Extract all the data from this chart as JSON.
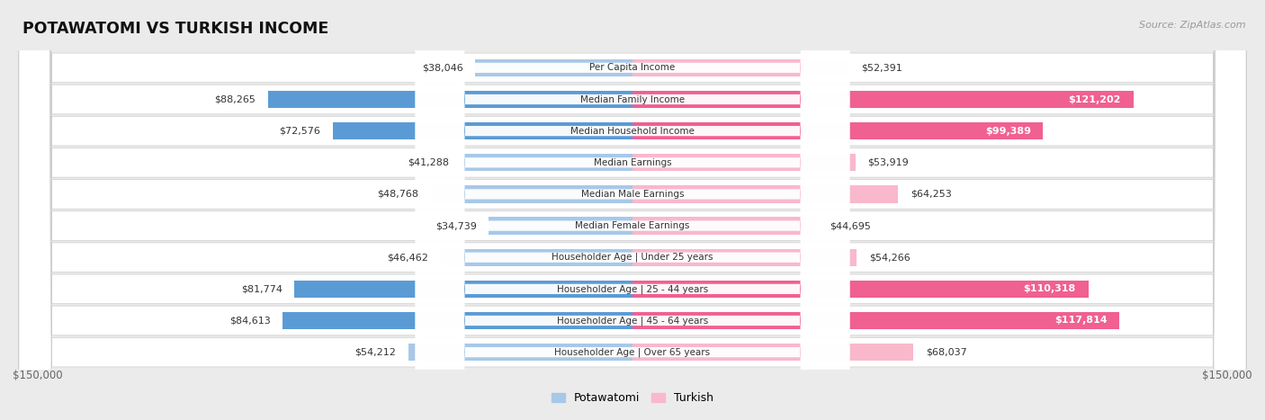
{
  "title": "POTAWATOMI VS TURKISH INCOME",
  "source": "Source: ZipAtlas.com",
  "categories": [
    "Per Capita Income",
    "Median Family Income",
    "Median Household Income",
    "Median Earnings",
    "Median Male Earnings",
    "Median Female Earnings",
    "Householder Age | Under 25 years",
    "Householder Age | 25 - 44 years",
    "Householder Age | 45 - 64 years",
    "Householder Age | Over 65 years"
  ],
  "potawatomi_values": [
    38046,
    88265,
    72576,
    41288,
    48768,
    34739,
    46462,
    81774,
    84613,
    54212
  ],
  "turkish_values": [
    52391,
    121202,
    99389,
    53919,
    64253,
    44695,
    54266,
    110318,
    117814,
    68037
  ],
  "potawatomi_labels": [
    "$38,046",
    "$88,265",
    "$72,576",
    "$41,288",
    "$48,768",
    "$34,739",
    "$46,462",
    "$81,774",
    "$84,613",
    "$54,212"
  ],
  "turkish_labels": [
    "$52,391",
    "$121,202",
    "$99,389",
    "$53,919",
    "$64,253",
    "$44,695",
    "$54,266",
    "$110,318",
    "$117,814",
    "$68,037"
  ],
  "max_value": 150000,
  "potawatomi_color_light": "#a8c8e8",
  "potawatomi_color_dark": "#5b9bd5",
  "turkish_color_light": "#f9b8cc",
  "turkish_color_dark": "#f06090",
  "bg_color": "#ebebeb",
  "row_bg_color": "#f5f5f5",
  "row_alt_color": "#e8e8e8",
  "label_color_dark": "#333333",
  "label_color_white": "#ffffff",
  "axis_label": "$150,000",
  "legend_potawatomi": "Potawatomi",
  "legend_turkish": "Turkish"
}
